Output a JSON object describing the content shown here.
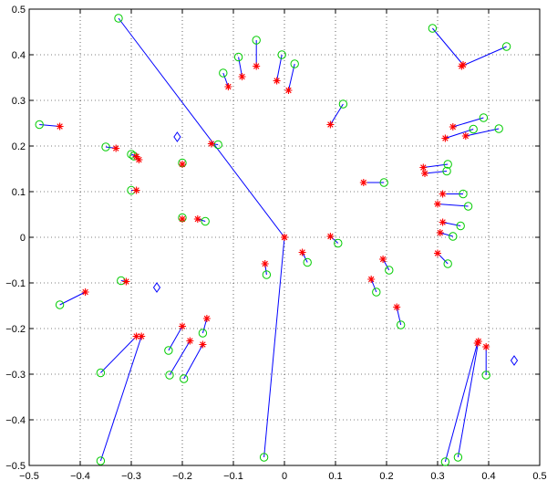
{
  "chart_data": {
    "type": "scatter",
    "title": "",
    "xlabel": "",
    "ylabel": "",
    "xlim": [
      -0.5,
      0.5
    ],
    "ylim": [
      -0.5,
      0.5
    ],
    "grid": true,
    "x_ticks": [
      -0.5,
      -0.4,
      -0.3,
      -0.2,
      -0.1,
      0,
      0.1,
      0.2,
      0.3,
      0.4,
      0.5
    ],
    "y_ticks": [
      -0.5,
      -0.4,
      -0.3,
      -0.2,
      -0.1,
      0,
      0.1,
      0.2,
      0.3,
      0.4,
      0.5
    ],
    "x_tick_labels": [
      "−0.5",
      "−0.4",
      "−0.3",
      "−0.2",
      "−0.1",
      "0",
      "0.1",
      "0.2",
      "0.3",
      "0.4",
      "0.5"
    ],
    "y_tick_labels": [
      "−0.5",
      "−0.4",
      "−0.3",
      "−0.2",
      "−0.1",
      "0",
      "0.1",
      "0.2",
      "0.3",
      "0.4",
      "0.5"
    ],
    "colors": {
      "circle": "#00cc00",
      "star": "#ff0000",
      "line": "#0000ff",
      "diamond": "#0000ff"
    },
    "pairs": [
      {
        "circle": [
          -0.48,
          0.247
        ],
        "star": [
          -0.44,
          0.243
        ]
      },
      {
        "circle": [
          -0.325,
          0.48
        ],
        "star": [
          0.0,
          0.0
        ]
      },
      {
        "circle": [
          -0.35,
          0.198
        ],
        "star": [
          -0.33,
          0.195
        ]
      },
      {
        "circle": [
          -0.3,
          0.182
        ],
        "star": [
          -0.29,
          0.177
        ]
      },
      {
        "circle": [
          -0.295,
          0.178
        ],
        "star": [
          -0.285,
          0.17
        ]
      },
      {
        "circle": [
          -0.3,
          0.103
        ],
        "star": [
          -0.29,
          0.103
        ]
      },
      {
        "circle": [
          -0.2,
          0.163
        ],
        "star": [
          -0.2,
          0.16
        ]
      },
      {
        "circle": [
          -0.2,
          0.043
        ],
        "star": [
          -0.2,
          0.04
        ]
      },
      {
        "circle": [
          -0.155,
          0.035
        ],
        "star": [
          -0.17,
          0.04
        ]
      },
      {
        "circle": [
          -0.13,
          0.203
        ],
        "star": [
          -0.143,
          0.205
        ]
      },
      {
        "circle": [
          -0.12,
          0.36
        ],
        "star": [
          -0.11,
          0.33
        ]
      },
      {
        "circle": [
          -0.09,
          0.395
        ],
        "star": [
          -0.083,
          0.352
        ]
      },
      {
        "circle": [
          -0.055,
          0.432
        ],
        "star": [
          -0.055,
          0.375
        ]
      },
      {
        "circle": [
          -0.005,
          0.4
        ],
        "star": [
          -0.015,
          0.343
        ]
      },
      {
        "circle": [
          0.02,
          0.38
        ],
        "star": [
          0.008,
          0.322
        ]
      },
      {
        "circle": [
          0.115,
          0.292
        ],
        "star": [
          0.09,
          0.247
        ]
      },
      {
        "circle": [
          -0.44,
          -0.148
        ],
        "star": [
          -0.39,
          -0.12
        ]
      },
      {
        "circle": [
          -0.32,
          -0.095
        ],
        "star": [
          -0.31,
          -0.097
        ]
      },
      {
        "circle": [
          -0.36,
          -0.297
        ],
        "star": [
          -0.29,
          -0.217
        ]
      },
      {
        "circle": [
          -0.36,
          -0.49
        ],
        "star": [
          -0.28,
          -0.217
        ]
      },
      {
        "circle": [
          -0.227,
          -0.248
        ],
        "star": [
          -0.2,
          -0.195
        ]
      },
      {
        "circle": [
          -0.225,
          -0.302
        ],
        "star": [
          -0.185,
          -0.227
        ]
      },
      {
        "circle": [
          -0.197,
          -0.31
        ],
        "star": [
          -0.16,
          -0.235
        ]
      },
      {
        "circle": [
          -0.16,
          -0.21
        ],
        "star": [
          -0.152,
          -0.178
        ]
      },
      {
        "circle": [
          -0.035,
          -0.082
        ],
        "star": [
          -0.038,
          -0.058
        ]
      },
      {
        "circle": [
          -0.04,
          -0.482
        ],
        "star": [
          0.0,
          0.0
        ]
      },
      {
        "circle": [
          0.045,
          -0.055
        ],
        "star": [
          0.035,
          -0.033
        ]
      },
      {
        "circle": [
          0.105,
          -0.013
        ],
        "star": [
          0.09,
          0.002
        ]
      },
      {
        "circle": [
          0.18,
          -0.12
        ],
        "star": [
          0.17,
          -0.092
        ]
      },
      {
        "circle": [
          0.205,
          -0.072
        ],
        "star": [
          0.193,
          -0.048
        ]
      },
      {
        "circle": [
          0.228,
          -0.192
        ],
        "star": [
          0.22,
          -0.153
        ]
      },
      {
        "circle": [
          0.195,
          0.12
        ],
        "star": [
          0.155,
          0.12
        ]
      },
      {
        "circle": [
          0.29,
          0.458
        ],
        "star": [
          0.35,
          0.378
        ]
      },
      {
        "circle": [
          0.435,
          0.418
        ],
        "star": [
          0.347,
          0.375
        ]
      },
      {
        "circle": [
          0.39,
          0.262
        ],
        "star": [
          0.33,
          0.242
        ]
      },
      {
        "circle": [
          0.42,
          0.238
        ],
        "star": [
          0.355,
          0.222
        ]
      },
      {
        "circle": [
          0.37,
          0.237
        ],
        "star": [
          0.315,
          0.217
        ]
      },
      {
        "circle": [
          0.32,
          0.16
        ],
        "star": [
          0.272,
          0.153
        ]
      },
      {
        "circle": [
          0.318,
          0.145
        ],
        "star": [
          0.275,
          0.14
        ]
      },
      {
        "circle": [
          0.35,
          0.095
        ],
        "star": [
          0.31,
          0.095
        ]
      },
      {
        "circle": [
          0.36,
          0.068
        ],
        "star": [
          0.3,
          0.073
        ]
      },
      {
        "circle": [
          0.345,
          0.025
        ],
        "star": [
          0.31,
          0.033
        ]
      },
      {
        "circle": [
          0.33,
          0.002
        ],
        "star": [
          0.305,
          0.01
        ]
      },
      {
        "circle": [
          0.32,
          -0.058
        ],
        "star": [
          0.3,
          -0.035
        ]
      },
      {
        "circle": [
          0.395,
          -0.302
        ],
        "star": [
          0.395,
          -0.24
        ]
      },
      {
        "circle": [
          0.34,
          -0.482
        ],
        "star": [
          0.38,
          -0.228
        ]
      },
      {
        "circle": [
          0.315,
          -0.492
        ],
        "star": [
          0.378,
          -0.232
        ]
      }
    ],
    "diamonds": [
      [
        -0.21,
        0.22
      ],
      [
        -0.25,
        -0.11
      ],
      [
        0.45,
        -0.27
      ]
    ]
  }
}
